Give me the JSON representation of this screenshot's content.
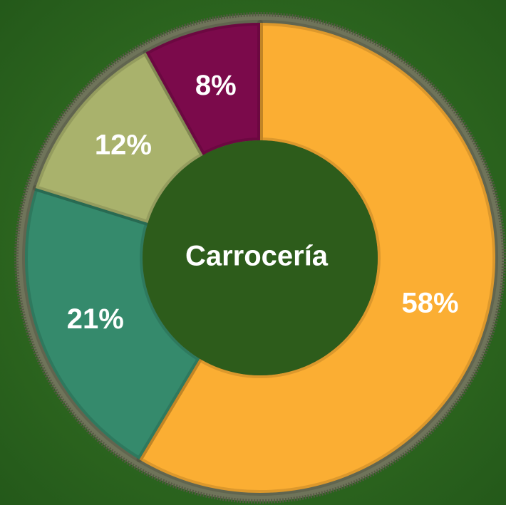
{
  "chart_data": {
    "type": "donut",
    "center_label": "Carrocería",
    "categories": [
      null,
      null,
      null,
      null
    ],
    "values": [
      58,
      21,
      12,
      8
    ],
    "value_labels": [
      "58%",
      "21%",
      "12%",
      "8%"
    ],
    "colors": [
      "#fbae33",
      "#358a6c",
      "#a9b26c",
      "#7b0a4b"
    ]
  }
}
